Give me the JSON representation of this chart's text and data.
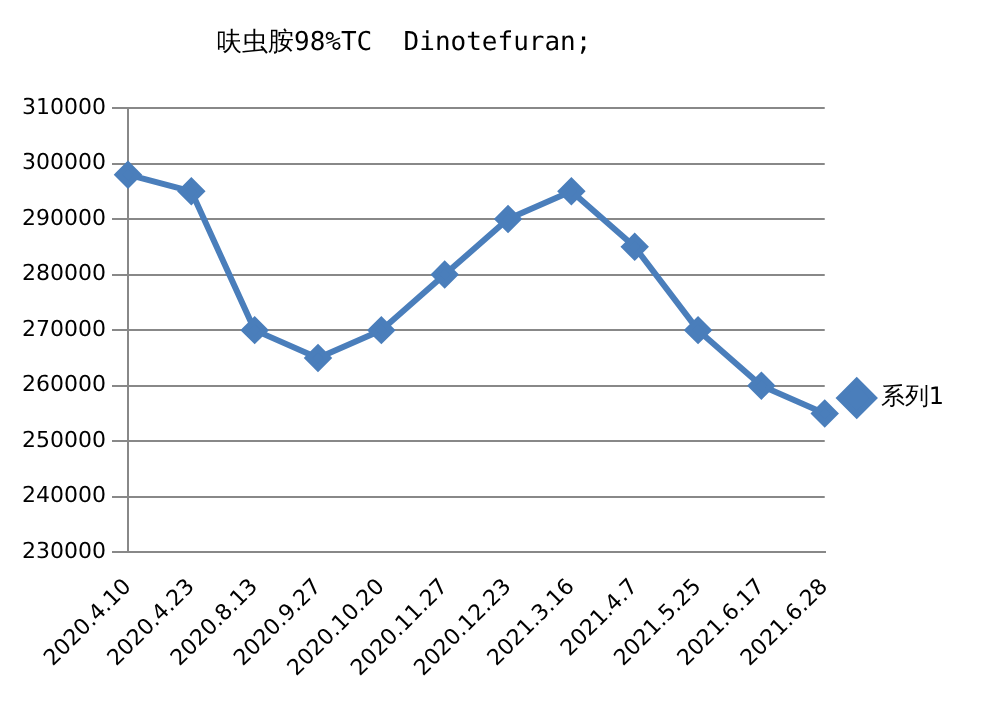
{
  "chart_data": {
    "type": "line",
    "title": "呋虫胺98%TC  Dinotefuran;",
    "categories": [
      "2020.4.10",
      "2020.4.23",
      "2020.8.13",
      "2020.9.27",
      "2020.10.20",
      "2020.11.27",
      "2020.12.23",
      "2021.3.16",
      "2021.4.7",
      "2021.5.25",
      "2021.6.17",
      "2021.6.28"
    ],
    "series": [
      {
        "name": "系列1",
        "color": "#4a7ebb",
        "values": [
          298000,
          295000,
          270000,
          265000,
          270000,
          280000,
          290000,
          295000,
          285000,
          270000,
          260000,
          255000
        ]
      }
    ],
    "ylim": [
      230000,
      310000
    ],
    "yticks": [
      230000,
      240000,
      250000,
      260000,
      270000,
      280000,
      290000,
      300000,
      310000
    ],
    "grid": "y",
    "legend": "right",
    "marker": "diamond",
    "line_style": "solid"
  }
}
